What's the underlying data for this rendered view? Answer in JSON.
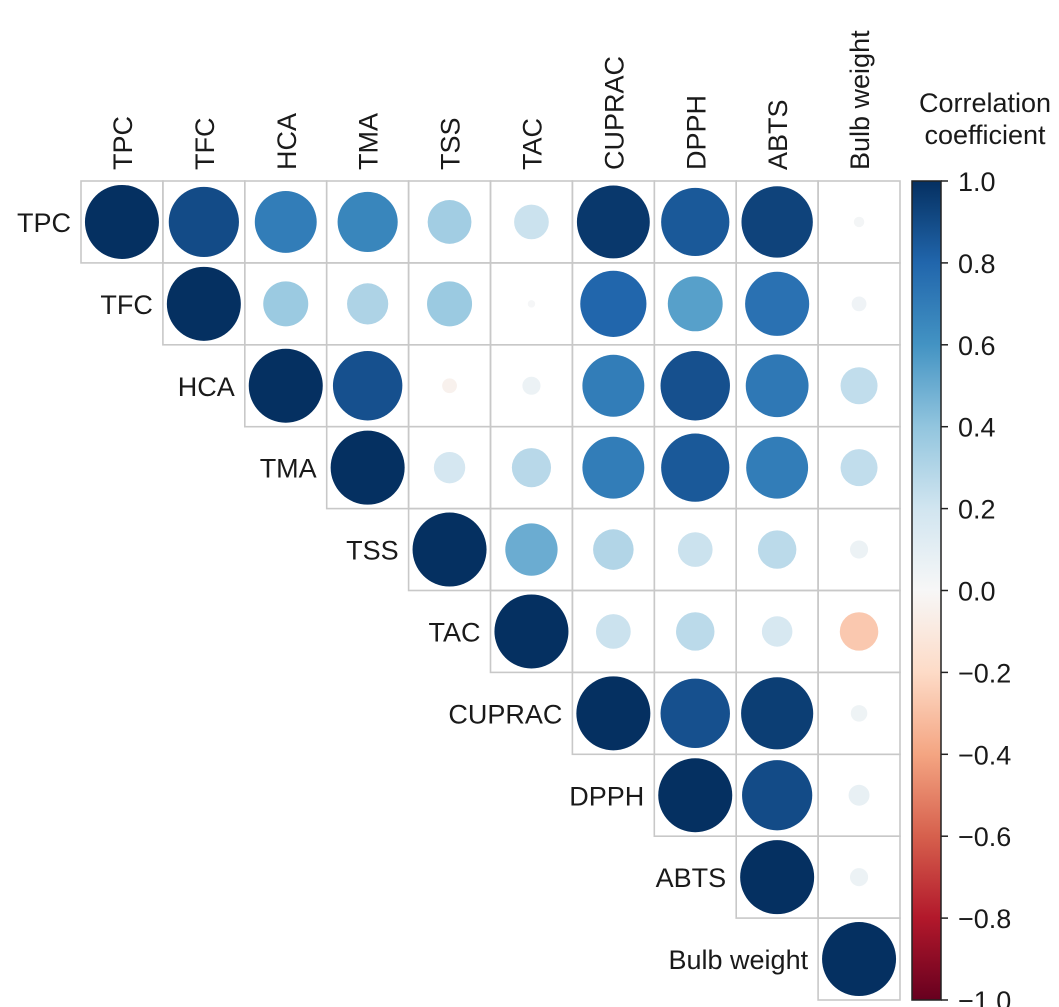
{
  "chart_data": {
    "type": "heatmap",
    "subtype": "correlation-upper-triangle-circles",
    "title": "",
    "variables": [
      "TPC",
      "TFC",
      "HCA",
      "TMA",
      "TSS",
      "TAC",
      "CUPRAC",
      "DPPH",
      "ABTS",
      "Bulb weight"
    ],
    "matrix_upper": [
      [
        1.0,
        0.9,
        0.7,
        0.66,
        0.35,
        0.22,
        0.97,
        0.85,
        0.93,
        0.02
      ],
      [
        null,
        1.0,
        0.37,
        0.31,
        0.37,
        0.01,
        0.8,
        0.55,
        0.75,
        0.04
      ],
      [
        null,
        null,
        1.0,
        0.88,
        -0.04,
        0.06,
        0.7,
        0.88,
        0.72,
        0.25
      ],
      [
        null,
        null,
        null,
        1.0,
        0.18,
        0.28,
        0.7,
        0.85,
        0.7,
        0.25
      ],
      [
        null,
        null,
        null,
        null,
        1.0,
        0.5,
        0.3,
        0.22,
        0.27,
        0.06
      ],
      [
        null,
        null,
        null,
        null,
        null,
        1.0,
        0.22,
        0.27,
        0.17,
        -0.27
      ],
      [
        null,
        null,
        null,
        null,
        null,
        null,
        1.0,
        0.88,
        0.95,
        0.05
      ],
      [
        null,
        null,
        null,
        null,
        null,
        null,
        null,
        1.0,
        0.9,
        0.08
      ],
      [
        null,
        null,
        null,
        null,
        null,
        null,
        null,
        null,
        1.0,
        0.06
      ],
      [
        null,
        null,
        null,
        null,
        null,
        null,
        null,
        null,
        null,
        1.0
      ]
    ],
    "colorbar": {
      "title": "Correlation coefficient",
      "title_lines": [
        "Correlation",
        "coefficient"
      ],
      "range": [
        -1.0,
        1.0
      ],
      "ticks": [
        1.0,
        0.8,
        0.6,
        0.4,
        0.2,
        0.0,
        -0.2,
        -0.4,
        -0.6,
        -0.8,
        -1.0
      ],
      "tick_labels": [
        "1.0",
        "0.8",
        "0.6",
        "0.4",
        "0.2",
        "0.0",
        "−0.2",
        "−0.4",
        "−0.6",
        "−0.8",
        "−1.0"
      ],
      "colormap": "RdBu",
      "placement": "right"
    },
    "grid": true,
    "encoding": "circle area proportional to |r|, color by r"
  }
}
